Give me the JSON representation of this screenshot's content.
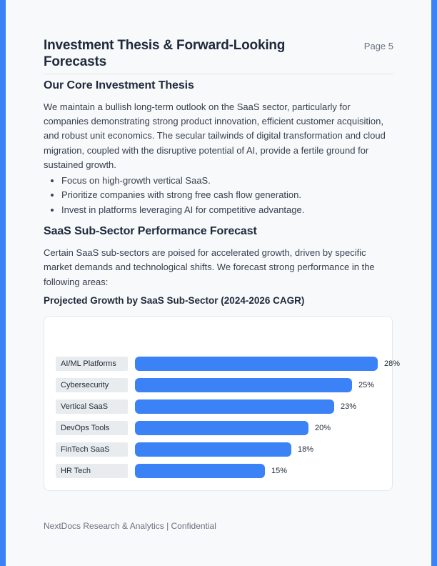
{
  "page": {
    "title": "Investment Thesis & Forward-Looking Forecasts",
    "page_number": "Page 5",
    "footer": "NextDocs Research & Analytics | Confidential"
  },
  "colors": {
    "accent_blue": "#3b82f6",
    "page_background": "#f8f9fa",
    "card_background": "#ffffff",
    "card_border": "#e5e7eb",
    "label_pill_background": "#e9ecef",
    "heading_text": "#1e293b",
    "body_text": "#374151",
    "muted_text": "#6b7280"
  },
  "sections": {
    "thesis": {
      "heading": "Our Core Investment Thesis",
      "paragraph": "We maintain a bullish long-term outlook on the SaaS sector, particularly for companies demonstrating strong product innovation, efficient customer acquisition, and robust unit economics. The secular tailwinds of digital transformation and cloud migration, coupled with the disruptive potential of AI, provide a fertile ground for sustained growth.",
      "bullets": [
        "Focus on high-growth vertical SaaS.",
        "Prioritize companies with strong free cash flow generation.",
        "Invest in platforms leveraging AI for competitive advantage."
      ]
    },
    "forecast": {
      "heading": "SaaS Sub-Sector Performance Forecast",
      "paragraph": "Certain SaaS sub-sectors are poised for accelerated growth, driven by specific market demands and technological shifts. We forecast strong performance in the following areas:",
      "chart_heading": "Projected Growth by SaaS Sub-Sector (2024-2026 CAGR)"
    }
  },
  "chart_data": {
    "type": "bar",
    "orientation": "horizontal",
    "title": "Projected Growth by SaaS Sub-Sector (2024-2026 CAGR)",
    "categories": [
      "AI/ML Platforms",
      "Cybersecurity",
      "Vertical SaaS",
      "DevOps Tools",
      "FinTech SaaS",
      "HR Tech"
    ],
    "values": [
      28,
      25,
      23,
      20,
      18,
      15
    ],
    "unit": "%",
    "value_labels": [
      "28%",
      "25%",
      "23%",
      "20%",
      "18%",
      "15%"
    ],
    "xlim": [
      0,
      28
    ],
    "bar_color": "#3b82f6",
    "grid": false,
    "legend": false
  }
}
